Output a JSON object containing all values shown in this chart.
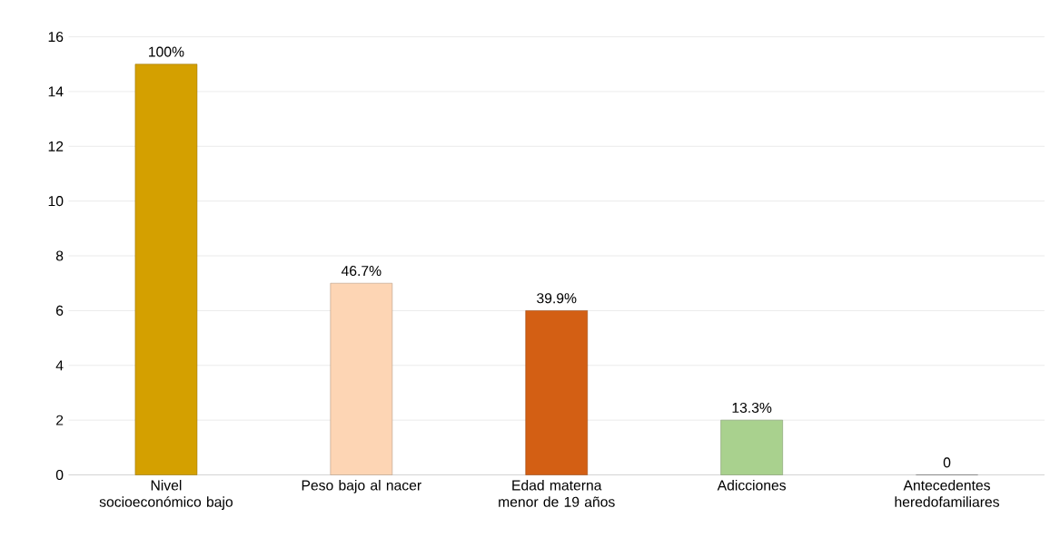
{
  "chart_data": {
    "type": "bar",
    "categories": [
      "Nivel socioeconómico bajo",
      "Peso bajo al nacer",
      "Edad materna menor de 19 años",
      "Adicciones",
      "Antecedentes heredofamiliares"
    ],
    "values": [
      15,
      7,
      6,
      2,
      0
    ],
    "colors": [
      "#d4a000",
      "#fdd5b4",
      "#d35f14",
      "#a9d18e",
      "#a5a5a5"
    ],
    "annotations": [
      {
        "text": "100%",
        "x": "Nivel socioeconómico bajo",
        "y": 15
      },
      {
        "text": "46.7%",
        "x": "Peso bajo al nacer",
        "y": 7
      },
      {
        "text": "39.9%",
        "x": "Edad materna menor de 19 años",
        "y": 6
      },
      {
        "text": "13.3%",
        "x": "Adicciones",
        "y": 2
      },
      {
        "text": "0",
        "x": "Antecedentes heredofamiliares",
        "y": 0
      }
    ],
    "ylim": [
      0,
      16
    ],
    "yticks": [
      0,
      2,
      4,
      6,
      8,
      10,
      12,
      14,
      16
    ],
    "grid": "y"
  }
}
